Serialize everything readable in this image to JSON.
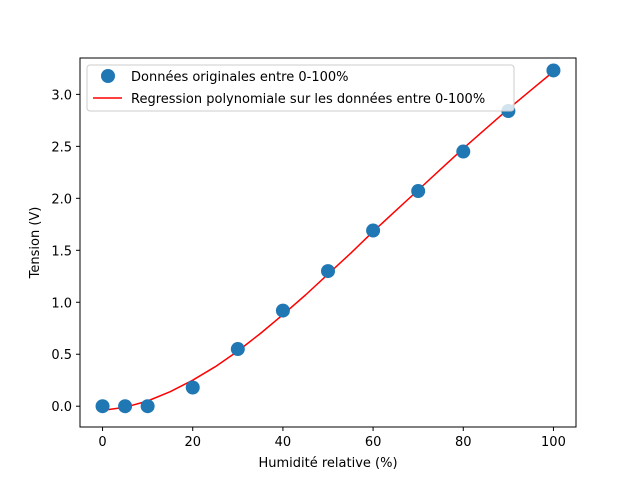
{
  "chart_data": {
    "type": "scatter",
    "xlabel": "Humidité relative (%)",
    "ylabel": "Tension (V)",
    "xlim": [
      -5,
      105
    ],
    "ylim": [
      -0.2,
      3.35
    ],
    "xticks": [
      0,
      20,
      40,
      60,
      80,
      100
    ],
    "yticks": [
      0.0,
      0.5,
      1.0,
      1.5,
      2.0,
      2.5,
      3.0
    ],
    "xtick_labels": [
      "0",
      "20",
      "40",
      "60",
      "80",
      "100"
    ],
    "ytick_labels": [
      "0.0",
      "0.5",
      "1.0",
      "1.5",
      "2.0",
      "2.5",
      "3.0"
    ],
    "grid": false,
    "legend_position": "top-left",
    "series": [
      {
        "name": "Données originales entre 0-100%",
        "kind": "scatter",
        "color": "#1f77b4",
        "x": [
          0,
          5,
          10,
          20,
          30,
          40,
          50,
          60,
          70,
          80,
          90,
          100
        ],
        "y": [
          0.0,
          0.0,
          0.0,
          0.18,
          0.55,
          0.92,
          1.3,
          1.69,
          2.07,
          2.45,
          2.84,
          3.23
        ]
      },
      {
        "name": "Regression polynomiale sur les données entre 0-100%",
        "kind": "line",
        "color": "#ff0000",
        "x": [
          0,
          5,
          10,
          15,
          20,
          25,
          30,
          35,
          40,
          45,
          50,
          55,
          60,
          65,
          70,
          75,
          80,
          85,
          90,
          95,
          100
        ],
        "y": [
          -0.04,
          -0.01,
          0.05,
          0.14,
          0.25,
          0.38,
          0.53,
          0.7,
          0.88,
          1.07,
          1.27,
          1.47,
          1.68,
          1.88,
          2.08,
          2.28,
          2.48,
          2.67,
          2.86,
          3.04,
          3.22
        ]
      }
    ]
  }
}
